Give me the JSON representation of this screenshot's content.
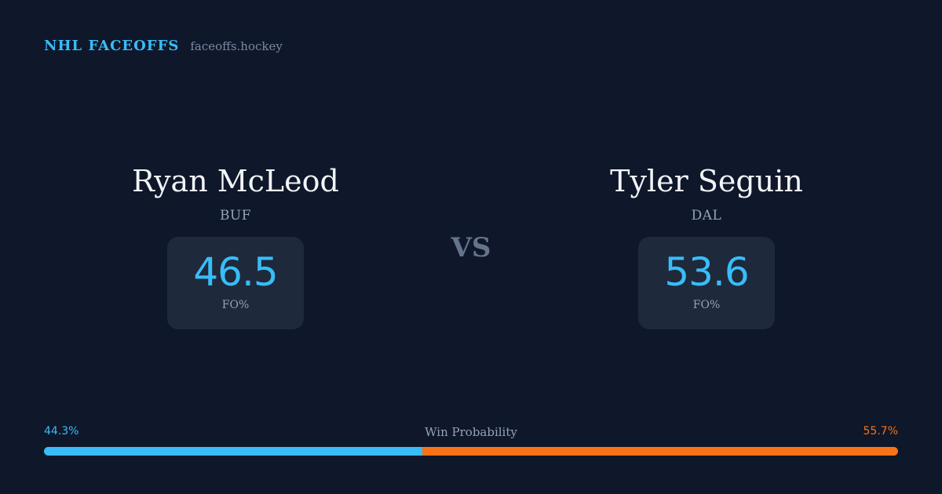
{
  "header": {
    "brand": "NHL FACEOFFS",
    "site": "faceoffs.hockey"
  },
  "players": [
    {
      "name": "Ryan McLeod",
      "team": "BUF",
      "stat_value": "46.5",
      "stat_label": "FO%"
    },
    {
      "name": "Tyler Seguin",
      "team": "DAL",
      "stat_value": "53.6",
      "stat_label": "FO%"
    }
  ],
  "versus": "VS",
  "win_probability": {
    "title": "Win Probability",
    "left_label": "44.3%",
    "right_label": "55.7%",
    "left_value": 44.3,
    "right_value": 55.7
  },
  "colors": {
    "background": "#0f172a",
    "card": "#1e293b",
    "accent_left": "#38bdf8",
    "accent_right": "#f97316",
    "muted": "#94a3b8"
  }
}
